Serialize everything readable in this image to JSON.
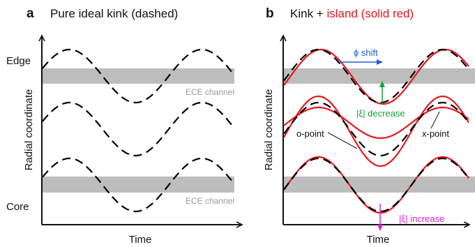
{
  "panel_a": {
    "letter": "a",
    "title": "Pure ideal kink (dashed)",
    "y_axis_label": "Radial coordinate",
    "x_axis_label": "Time",
    "edge_label": "Edge",
    "core_label": "Core",
    "ece_channel_top": "ECE channel",
    "ece_channel_bottom": "ECE channel"
  },
  "panel_b": {
    "letter": "b",
    "title_part1": "Kink + ",
    "title_part2": "island (solid red)",
    "y_axis_label": "Radial coordinate",
    "x_axis_label": "Time",
    "phi_shift": "ϕ shift",
    "xi_decrease": "|ξ| decrease",
    "xi_increase": "|ξ| increase",
    "o_point": "o-point",
    "x_point": "x-point"
  },
  "colors": {
    "ece_band": "#bdbdbd",
    "dashed_line": "#000000",
    "red_line": "#e8161e",
    "blue_annot": "#1f5fd6",
    "green_annot": "#1aa03a",
    "magenta_annot": "#e020c8"
  }
}
